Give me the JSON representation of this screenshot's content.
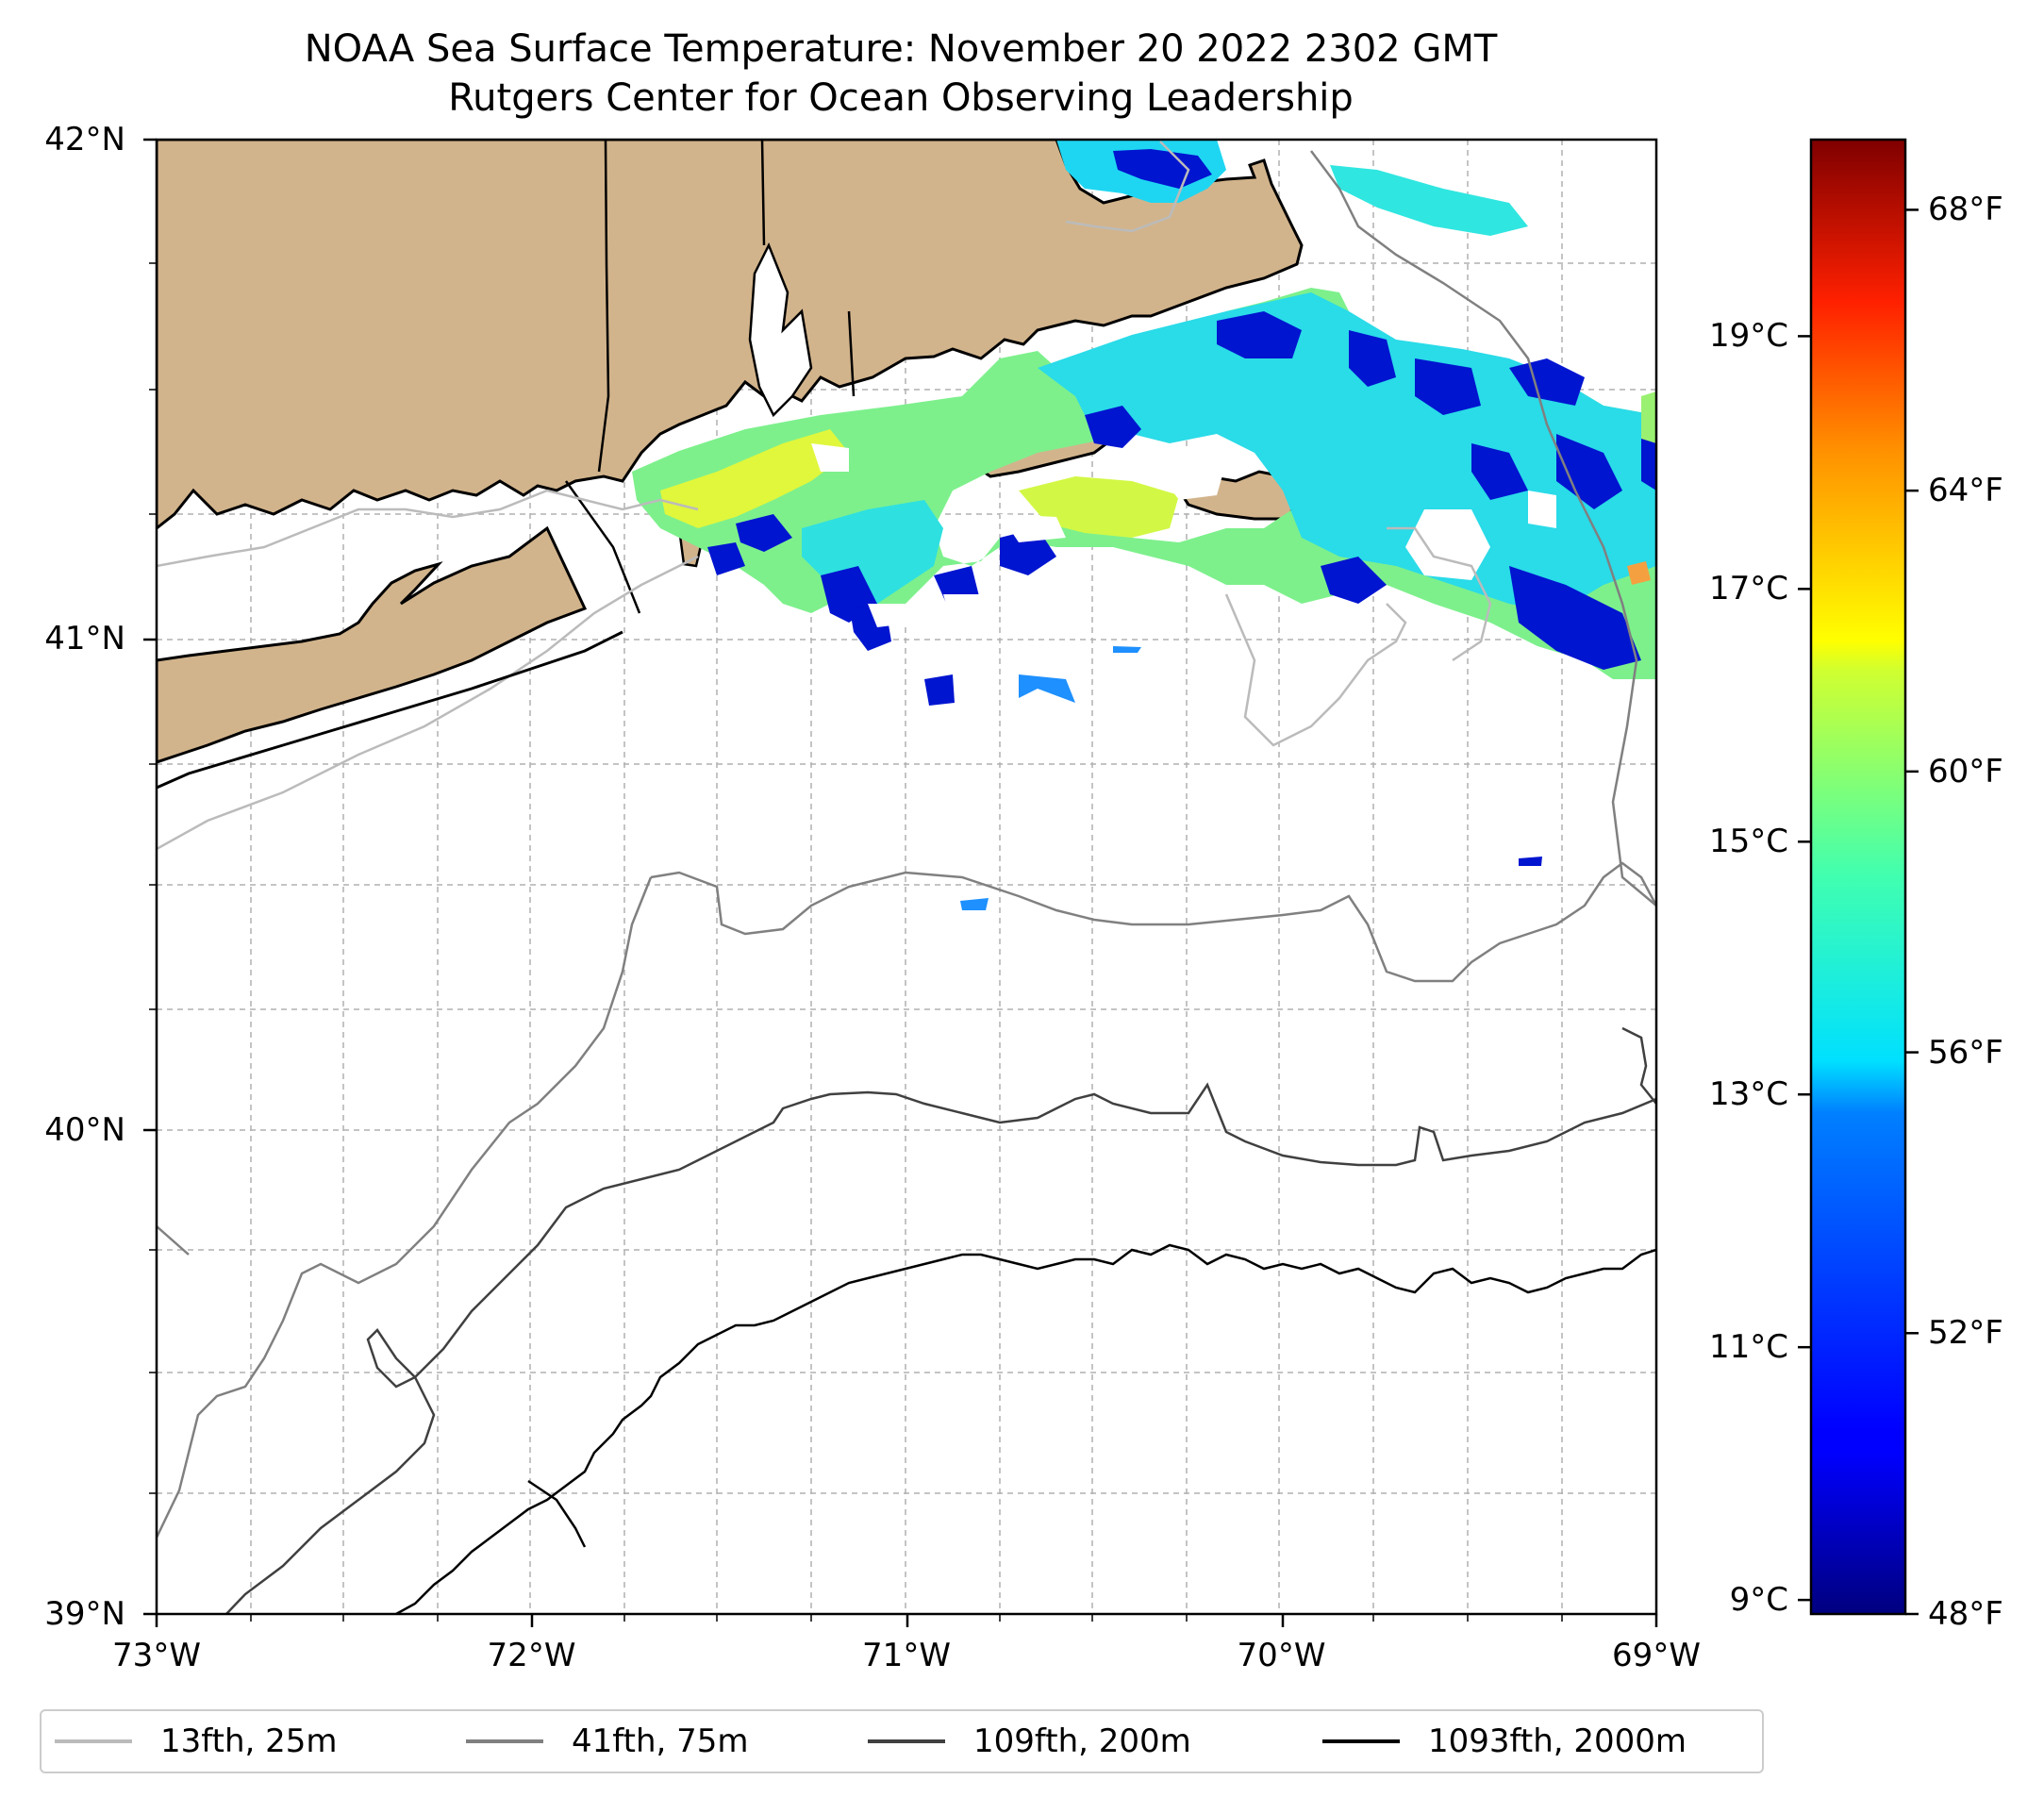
{
  "title": {
    "line1": "NOAA Sea Surface Temperature: November 20 2022 2302 GMT",
    "line2": "Rutgers Center for Ocean Observing Leadership"
  },
  "map_extent": {
    "lon": [
      -73,
      -69
    ],
    "lat": [
      39,
      42
    ]
  },
  "axes": {
    "x_ticks": [
      {
        "lon": -73,
        "label": "73°W"
      },
      {
        "lon": -72,
        "label": "72°W"
      },
      {
        "lon": -71,
        "label": "71°W"
      },
      {
        "lon": -70,
        "label": "70°W"
      },
      {
        "lon": -69,
        "label": "69°W"
      }
    ],
    "y_ticks": [
      {
        "lat": 42,
        "label": "42°N"
      },
      {
        "lat": 41,
        "label": "41°N"
      },
      {
        "lat": 40,
        "label": "40°N"
      },
      {
        "lat": 39,
        "label": "39°N"
      }
    ],
    "grid": true
  },
  "colorbar": {
    "colormap": "jet",
    "range_f": [
      48,
      69
    ],
    "celsius_ticks": [
      {
        "value_c": 9,
        "label": "9°C"
      },
      {
        "value_c": 11,
        "label": "11°C"
      },
      {
        "value_c": 13,
        "label": "13°C"
      },
      {
        "value_c": 15,
        "label": "15°C"
      },
      {
        "value_c": 17,
        "label": "17°C"
      },
      {
        "value_c": 19,
        "label": "19°C"
      }
    ],
    "fahrenheit_ticks": [
      {
        "value_f": 48,
        "label": "48°F"
      },
      {
        "value_f": 52,
        "label": "52°F"
      },
      {
        "value_f": 56,
        "label": "56°F"
      },
      {
        "value_f": 60,
        "label": "60°F"
      },
      {
        "value_f": 64,
        "label": "64°F"
      },
      {
        "value_f": 68,
        "label": "68°F"
      }
    ]
  },
  "legend": {
    "placement": "bottom",
    "entries": [
      {
        "label": "13fth, 25m",
        "color": "#bbbbbb"
      },
      {
        "label": "41fth, 75m",
        "color": "#808080"
      },
      {
        "label": "109fth, 200m",
        "color": "#404040"
      },
      {
        "label": "1093fth, 2000m",
        "color": "#000000"
      }
    ]
  },
  "colors": {
    "land": "#d2b48c",
    "ocean": "#ffffff",
    "coastline": "#000000"
  }
}
